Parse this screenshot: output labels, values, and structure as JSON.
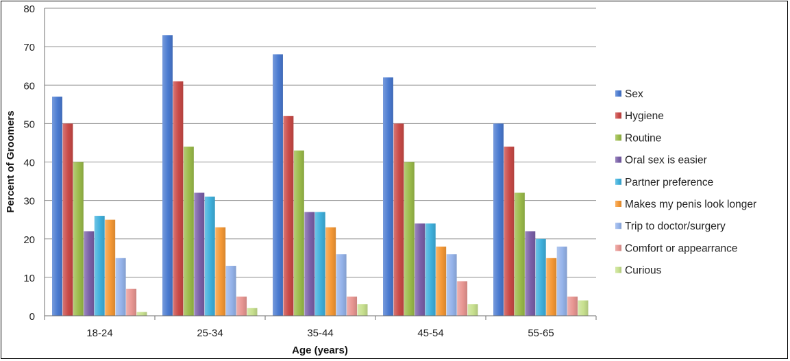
{
  "chart_data": {
    "type": "bar",
    "title": "",
    "xlabel": "Age (years)",
    "ylabel": "Percent of Groomers",
    "ylim": [
      0,
      80
    ],
    "yticks": [
      "0",
      "10",
      "20",
      "30",
      "40",
      "50",
      "60",
      "70",
      "80"
    ],
    "grid": true,
    "legend_position": "right",
    "categories": [
      "18-24",
      "25-34",
      "35-44",
      "45-54",
      "55-65"
    ],
    "series": [
      {
        "name": "Sex",
        "color": "#4a7ad0",
        "values": [
          57,
          73,
          68,
          62,
          50
        ]
      },
      {
        "name": "Hygiene",
        "color": "#c94a47",
        "values": [
          50,
          61,
          52,
          50,
          44
        ]
      },
      {
        "name": "Routine",
        "color": "#9bbb4a",
        "values": [
          40,
          44,
          43,
          40,
          32
        ]
      },
      {
        "name": "Oral sex is easier",
        "color": "#7a60a8",
        "values": [
          22,
          32,
          27,
          24,
          22
        ]
      },
      {
        "name": "Partner preference",
        "color": "#3fb0dc",
        "values": [
          26,
          31,
          27,
          24,
          20
        ]
      },
      {
        "name": "Makes my penis look longer",
        "color": "#f49835",
        "values": [
          25,
          23,
          23,
          18,
          15
        ]
      },
      {
        "name": "Trip to doctor/surgery",
        "color": "#95b3ea",
        "values": [
          15,
          13,
          16,
          16,
          18
        ]
      },
      {
        "name": "Comfort or appearrance",
        "color": "#e89692",
        "values": [
          7,
          5,
          5,
          9,
          5
        ]
      },
      {
        "name": "Curious",
        "color": "#c7e08e",
        "values": [
          1,
          2,
          3,
          3,
          4
        ]
      }
    ]
  }
}
